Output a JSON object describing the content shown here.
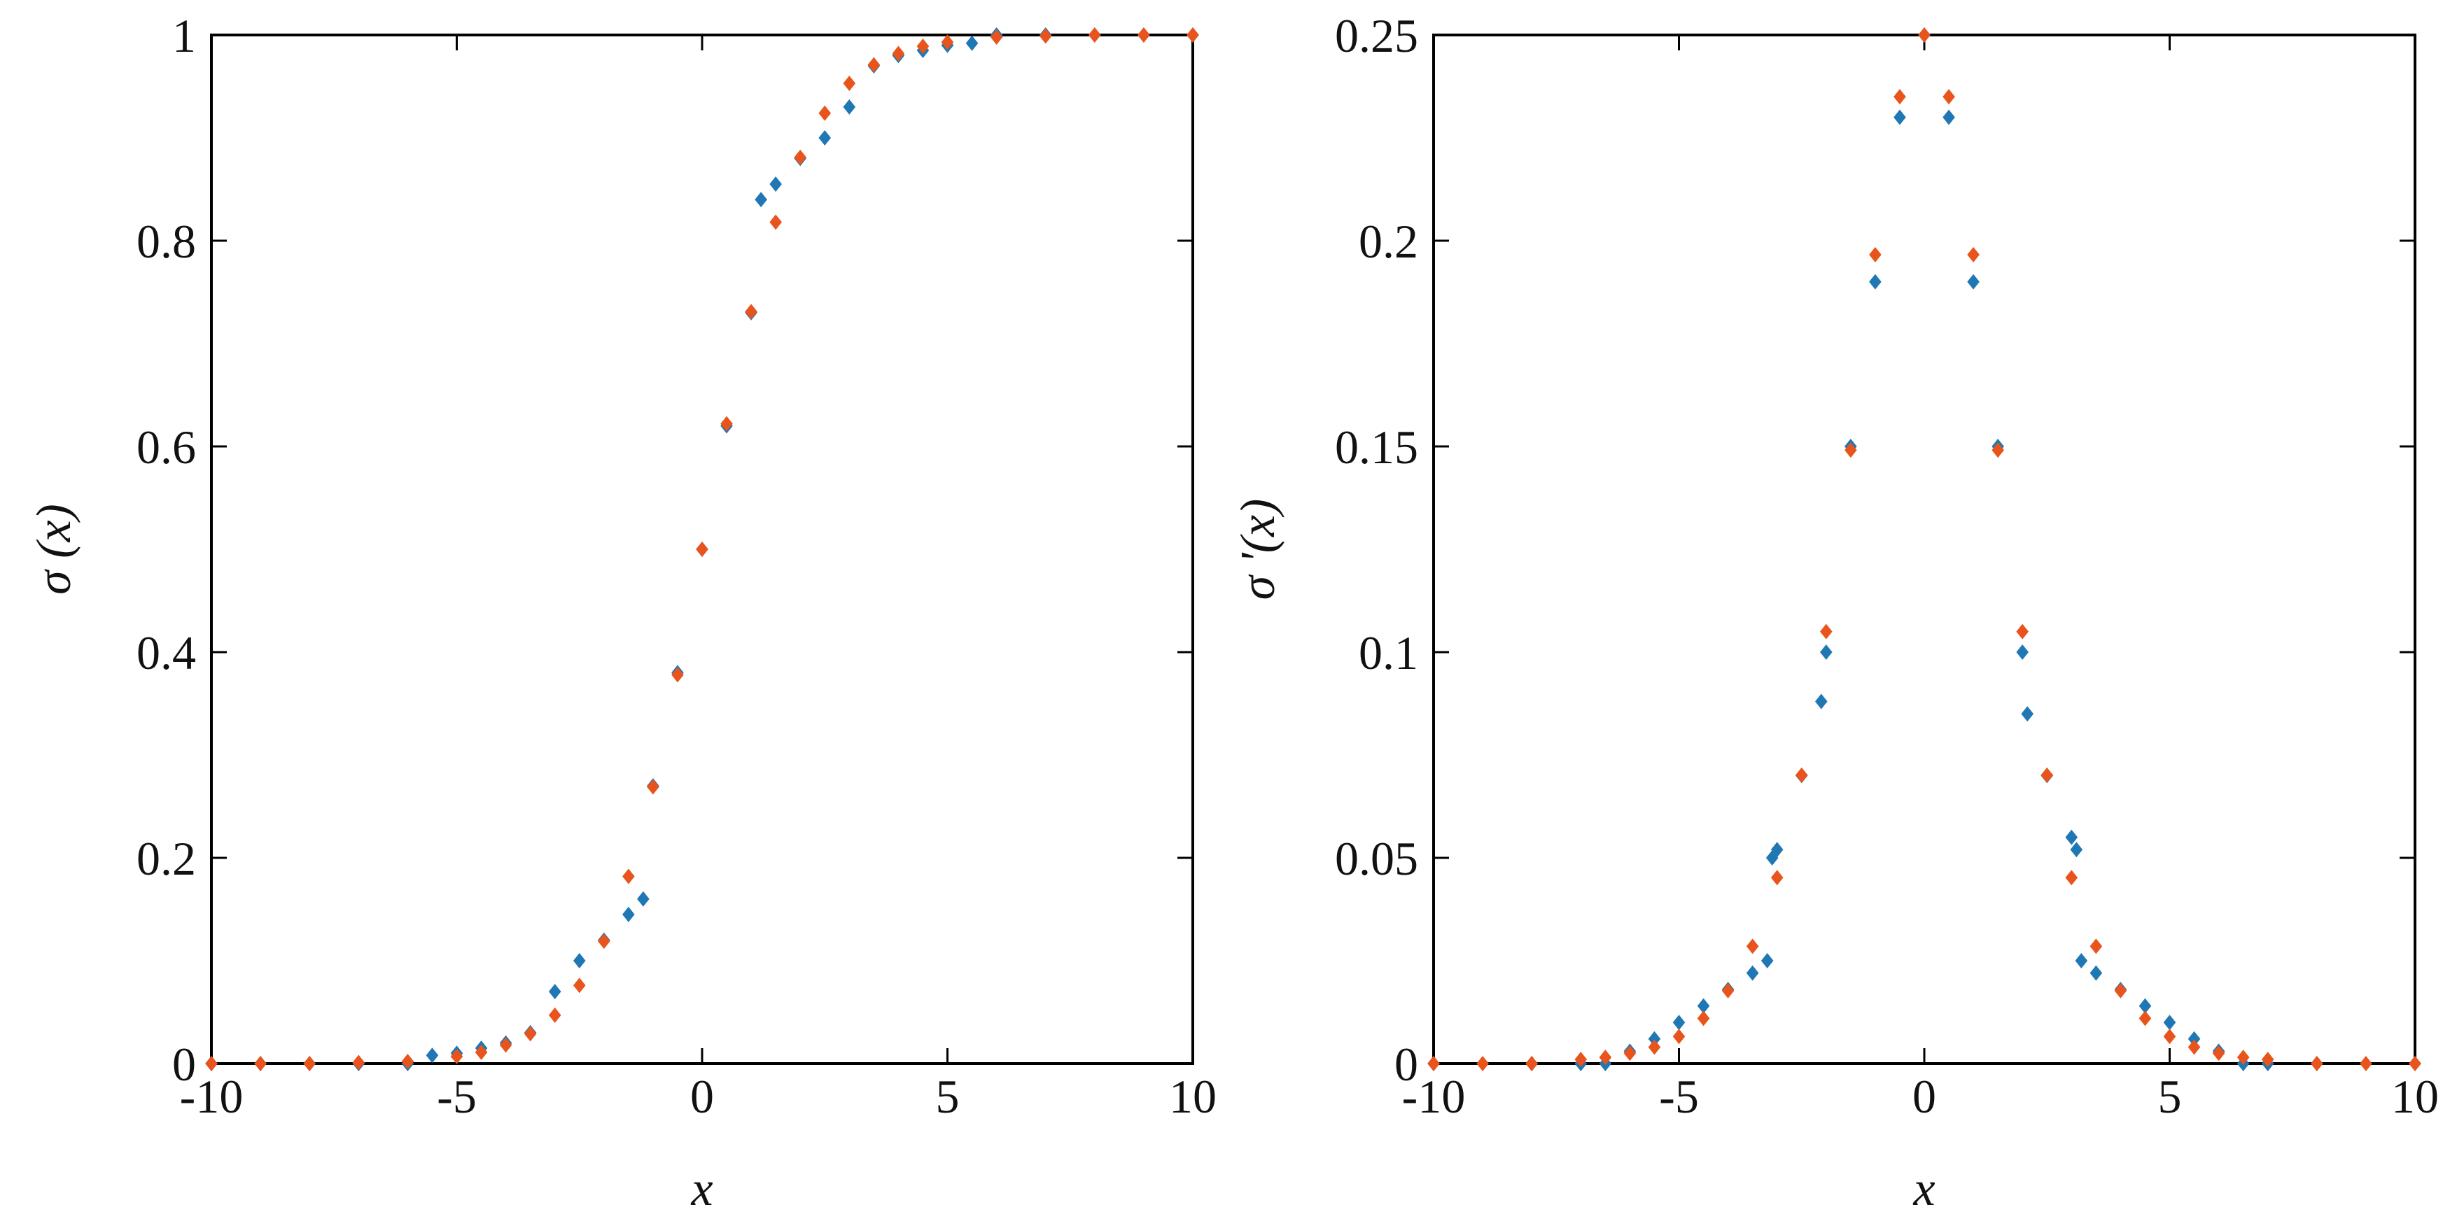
{
  "colors": {
    "series_a": "#1F77B4",
    "series_b": "#E8541C",
    "axis": "#000000",
    "background": "#ffffff"
  },
  "chart_data": [
    {
      "type": "scatter",
      "title": "",
      "xlabel": "x",
      "ylabel": "σ (x)",
      "xlim": [
        -10,
        10
      ],
      "ylim": [
        0,
        1
      ],
      "xticks": [
        -10,
        -5,
        0,
        5,
        10
      ],
      "xtick_labels": [
        "-10",
        "-5",
        "0",
        "5",
        "10"
      ],
      "yticks": [
        0,
        0.2,
        0.4,
        0.6,
        0.8,
        1
      ],
      "ytick_labels": [
        "0",
        "0.2",
        "0.4",
        "0.6",
        "0.8",
        "1"
      ],
      "grid": false,
      "legend": "none",
      "marker": "diamond",
      "series": [
        {
          "color": "#1F77B4",
          "x": [
            -10,
            -9,
            -8,
            -7,
            -6,
            -5.5,
            -5,
            -4.5,
            -4,
            -3.5,
            -3,
            -2.5,
            -2,
            -1.5,
            -1.2,
            -1,
            -0.5,
            0,
            0.5,
            1,
            1.2,
            1.5,
            2,
            2.5,
            3,
            3.5,
            4,
            4.5,
            5,
            5.5,
            6,
            7,
            8,
            9,
            10
          ],
          "y": [
            0,
            0,
            0,
            0,
            0,
            0.008,
            0.01,
            0.015,
            0.02,
            0.03,
            0.07,
            0.1,
            0.12,
            0.145,
            0.16,
            0.27,
            0.38,
            0.5,
            0.62,
            0.73,
            0.84,
            0.855,
            0.88,
            0.9,
            0.93,
            0.97,
            0.98,
            0.985,
            0.99,
            0.992,
            1,
            1,
            1,
            1,
            1
          ]
        },
        {
          "color": "#E8541C",
          "x": [
            -10,
            -9,
            -8,
            -7,
            -6,
            -5,
            -4.5,
            -4,
            -3.5,
            -3,
            -2.5,
            -2,
            -1.5,
            -1,
            -0.5,
            0,
            0.5,
            1,
            1.5,
            2,
            2.5,
            3,
            3.5,
            4,
            4.5,
            5,
            6,
            7,
            8,
            9,
            10
          ],
          "y": [
            0,
            0,
            0,
            0.001,
            0.002,
            0.007,
            0.011,
            0.018,
            0.029,
            0.047,
            0.076,
            0.119,
            0.182,
            0.269,
            0.378,
            0.5,
            0.622,
            0.731,
            0.818,
            0.881,
            0.924,
            0.953,
            0.971,
            0.982,
            0.989,
            0.993,
            0.998,
            0.999,
            1,
            1,
            1
          ]
        }
      ]
    },
    {
      "type": "scatter",
      "title": "",
      "xlabel": "x",
      "ylabel": "σ '(x)",
      "xlim": [
        -10,
        10
      ],
      "ylim": [
        0,
        0.25
      ],
      "xticks": [
        -10,
        -5,
        0,
        5,
        10
      ],
      "xtick_labels": [
        "-10",
        "-5",
        "0",
        "5",
        "10"
      ],
      "yticks": [
        0,
        0.05,
        0.1,
        0.15,
        0.2,
        0.25
      ],
      "ytick_labels": [
        "0",
        "0.05",
        "0.1",
        "0.15",
        "0.2",
        "0.25"
      ],
      "grid": false,
      "legend": "none",
      "marker": "diamond",
      "series": [
        {
          "color": "#1F77B4",
          "x": [
            -10,
            -8,
            -7,
            -6.5,
            -6,
            -5.5,
            -5,
            -4.5,
            -4,
            -3.5,
            -3.2,
            -3.1,
            -3,
            -2.5,
            -2.1,
            -2,
            -1.5,
            -1,
            -0.5,
            0,
            0.5,
            1,
            1.5,
            2,
            2.1,
            2.5,
            3,
            3.1,
            3.2,
            3.5,
            4,
            4.5,
            5,
            5.5,
            6,
            6.5,
            7,
            8,
            10
          ],
          "y": [
            0,
            0,
            0,
            0,
            0.003,
            0.006,
            0.01,
            0.014,
            0.018,
            0.022,
            0.025,
            0.05,
            0.052,
            0.07,
            0.088,
            0.1,
            0.15,
            0.19,
            0.23,
            0.25,
            0.23,
            0.19,
            0.15,
            0.1,
            0.085,
            0.07,
            0.055,
            0.052,
            0.025,
            0.022,
            0.018,
            0.014,
            0.01,
            0.006,
            0.003,
            0,
            0,
            0,
            0
          ]
        },
        {
          "color": "#E8541C",
          "x": [
            -10,
            -9,
            -8,
            -7,
            -6.5,
            -6,
            -5.5,
            -5,
            -4.5,
            -4,
            -3.5,
            -3,
            -2.5,
            -2,
            -1.5,
            -1,
            -0.5,
            0,
            0.5,
            1,
            1.5,
            2,
            2.5,
            3,
            3.5,
            4,
            4.5,
            5,
            5.5,
            6,
            6.5,
            7,
            8,
            9,
            10
          ],
          "y": [
            0,
            0,
            0,
            0.001,
            0.0015,
            0.0025,
            0.004,
            0.0066,
            0.011,
            0.0177,
            0.0285,
            0.0452,
            0.0701,
            0.105,
            0.1491,
            0.1966,
            0.235,
            0.25,
            0.235,
            0.1966,
            0.1491,
            0.105,
            0.0701,
            0.0452,
            0.0285,
            0.0177,
            0.011,
            0.0066,
            0.004,
            0.0025,
            0.0015,
            0.001,
            0,
            0,
            0
          ]
        }
      ]
    }
  ]
}
